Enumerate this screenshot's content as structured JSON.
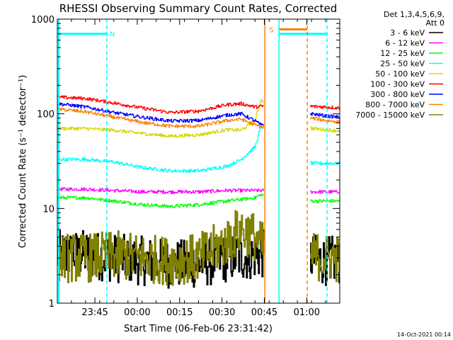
{
  "chart_data": {
    "type": "line",
    "title": "RHESSI Observing Summary Count Rates, Corrected",
    "xlabel": "Start Time (06-Feb-06 23:31:42)",
    "ylabel": "Corrected Count Rate (s⁻¹ detector⁻¹)",
    "x_unit": "minutes after 23:31:42",
    "xlim": [
      0,
      100
    ],
    "ylim": [
      1,
      1000
    ],
    "yscale": "log",
    "x_ticks": [
      {
        "label": "23:45",
        "value": 13.3
      },
      {
        "label": "00:00",
        "value": 28.3
      },
      {
        "label": "00:15",
        "value": 43.3
      },
      {
        "label": "00:30",
        "value": 58.3
      },
      {
        "label": "00:45",
        "value": 73.3
      },
      {
        "label": "01:00",
        "value": 88.3
      }
    ],
    "y_ticks": [
      {
        "label": "1",
        "value": 1
      },
      {
        "label": "10",
        "value": 10
      },
      {
        "label": "100",
        "value": 100
      },
      {
        "label": "1000",
        "value": 1000
      }
    ],
    "legend_header": [
      "Det 1,3,4,5,6,9,",
      "Att 0"
    ],
    "legend_position": "right-outside",
    "series": [
      {
        "name": "3 - 6 keV",
        "color": "#000000",
        "x": [
          0,
          10,
          20,
          30,
          40,
          50,
          60,
          70,
          72,
          90,
          95,
          100
        ],
        "values": [
          3.2,
          3.3,
          3.0,
          2.8,
          2.6,
          2.6,
          3.0,
          3.2,
          3.3,
          3.0,
          2.8,
          2.9
        ]
      },
      {
        "name": "6 - 12 keV",
        "color": "#ff00ff",
        "x": [
          0,
          10,
          20,
          30,
          40,
          50,
          60,
          70,
          72,
          90,
          95,
          100
        ],
        "values": [
          16,
          16,
          15.5,
          15,
          15,
          15,
          15.5,
          15.5,
          15.5,
          15,
          15,
          15
        ]
      },
      {
        "name": "12 - 25 keV",
        "color": "#00ff00",
        "x": [
          0,
          10,
          20,
          30,
          40,
          50,
          60,
          70,
          72,
          90,
          95,
          100
        ],
        "values": [
          13,
          13,
          12,
          11,
          10.5,
          11,
          12,
          13,
          14,
          12,
          12,
          12
        ]
      },
      {
        "name": "25 - 50 keV",
        "color": "#00ffff",
        "x": [
          0,
          10,
          20,
          30,
          40,
          50,
          60,
          65,
          70,
          72,
          90,
          95,
          100
        ],
        "values": [
          33,
          33,
          31,
          27,
          25,
          25,
          28,
          33,
          45,
          75,
          30,
          30,
          30
        ]
      },
      {
        "name": "50 - 100 keV",
        "color": "#d7d700",
        "x": [
          0,
          10,
          20,
          30,
          40,
          50,
          60,
          65,
          70,
          72,
          90,
          95,
          100
        ],
        "values": [
          70,
          70,
          67,
          62,
          58,
          60,
          68,
          67,
          85,
          140,
          70,
          68,
          66
        ]
      },
      {
        "name": "100 - 300 keV",
        "color": "#ff0000",
        "x": [
          0,
          10,
          20,
          30,
          40,
          50,
          60,
          65,
          70,
          72,
          90,
          95,
          100
        ],
        "values": [
          150,
          145,
          130,
          115,
          103,
          107,
          125,
          128,
          118,
          120,
          120,
          118,
          115
        ]
      },
      {
        "name": "300 - 800 keV",
        "color": "#0000ff",
        "x": [
          0,
          10,
          20,
          30,
          40,
          50,
          60,
          65,
          70,
          72,
          90,
          95,
          100
        ],
        "values": [
          128,
          118,
          103,
          92,
          84,
          85,
          97,
          100,
          84,
          76,
          100,
          95,
          92
        ]
      },
      {
        "name": "800 - 7000 keV",
        "color": "#ff8000",
        "x": [
          0,
          10,
          20,
          30,
          40,
          50,
          60,
          65,
          70,
          72,
          90,
          95,
          100
        ],
        "values": [
          112,
          105,
          92,
          81,
          74,
          74,
          85,
          88,
          76,
          73,
          90,
          85,
          82
        ]
      },
      {
        "name": "7000 - 15000 keV",
        "color": "#808000",
        "x": [
          0,
          10,
          20,
          30,
          40,
          50,
          60,
          65,
          70,
          72,
          90,
          95,
          100
        ],
        "values": [
          3.0,
          3.0,
          3.2,
          3.0,
          2.8,
          3.0,
          4.5,
          6.0,
          5.0,
          4.0,
          3.2,
          3.0,
          3.0
        ]
      }
    ],
    "annotations": [
      {
        "text": "N",
        "color": "#00ffff",
        "kind": "night",
        "start": 0.5,
        "end": 17.5,
        "y": 700
      },
      {
        "text": "S",
        "color": "#ff8000",
        "kind": "saa",
        "start": 78.5,
        "end": 88.5,
        "y": 780
      },
      {
        "kind": "night",
        "color": "#00ffff",
        "start": 78.5,
        "end": 95.5,
        "y": 700
      },
      {
        "kind": "solid-line",
        "color": "#ff8000",
        "x": 73.5
      },
      {
        "kind": "solid-line",
        "color": "#00ffff",
        "x": 78.5
      },
      {
        "kind": "dashed-line",
        "color": "#ff8000",
        "x": 88.5
      },
      {
        "kind": "dashed-line",
        "color": "#00ffff",
        "x": 17.5
      },
      {
        "kind": "dashed-line",
        "color": "#00ffff",
        "x": 95.5
      }
    ]
  },
  "timestamp": "14-Oct-2021 00:14"
}
